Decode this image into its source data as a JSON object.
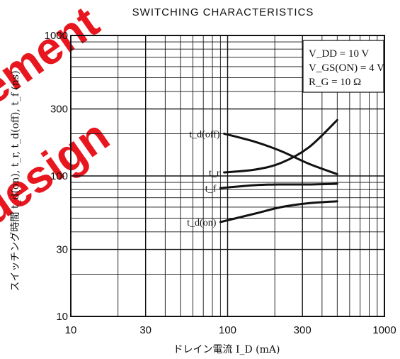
{
  "watermark": {
    "lines": [
      "ement",
      "design"
    ],
    "color": "#e8171f"
  },
  "chart_data": {
    "type": "line",
    "title": "SWITCHING CHARACTERISTICS",
    "xlabel": "ドレイン電流 I_D (mA)",
    "ylabel": "スイッチング時間 t_d(on), t_r, t_d(off), t_f (ns)",
    "xscale": "log",
    "yscale": "log",
    "xlim": [
      10,
      1000
    ],
    "ylim": [
      10,
      1000
    ],
    "xticks": [
      10,
      30,
      100,
      300,
      1000
    ],
    "xtick_labels": [
      "10",
      "30",
      "100",
      "300",
      "1000"
    ],
    "yticks": [
      10,
      30,
      100,
      300,
      1000
    ],
    "ytick_labels": [
      "10",
      "30",
      "100",
      "300",
      "1000"
    ],
    "grid": true,
    "conditions": [
      "V_DD = 10 V",
      "V_GS(ON) = 4 V",
      "R_G = 10 Ω"
    ],
    "series": [
      {
        "name": "t_d(off)",
        "x": [
          95,
          150,
          220,
          330,
          500
        ],
        "y": [
          200,
          175,
          150,
          122,
          103
        ]
      },
      {
        "name": "t_r",
        "x": [
          95,
          150,
          220,
          330,
          500
        ],
        "y": [
          106,
          111,
          124,
          160,
          250
        ]
      },
      {
        "name": "t_f",
        "x": [
          90,
          150,
          220,
          330,
          500
        ],
        "y": [
          82,
          86,
          87,
          87,
          88
        ]
      },
      {
        "name": "t_d(on)",
        "x": [
          90,
          150,
          220,
          330,
          500
        ],
        "y": [
          47,
          54,
          60,
          64,
          66
        ]
      }
    ]
  }
}
